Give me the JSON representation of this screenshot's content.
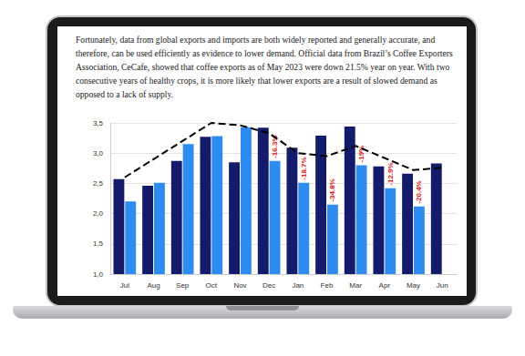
{
  "paragraph": "Fortunately, data from global exports and imports are both widely reported and generally accurate, and therefore, can be used efficiently as evidence to lower demand. Official data from Brazil’s Coffee Exporters Association, CeCafe, showed that coffee exports as of May 2023 were down 21.5% year on year. With two consecutive years of healthy crops, it is more likely that lower exports are a result of slowed demand as opposed to a lack of supply.",
  "chart_data": {
    "type": "bar",
    "categories": [
      "Jul",
      "Aug",
      "Sep",
      "Oct",
      "Nov",
      "Dec",
      "Jan",
      "Feb",
      "Mar",
      "Apr",
      "May",
      "Jun"
    ],
    "series": [
      {
        "color": "#141b6b",
        "values": [
          2.57,
          2.46,
          2.87,
          3.27,
          2.85,
          3.42,
          3.09,
          3.29,
          3.44,
          2.78,
          2.66,
          2.83
        ]
      },
      {
        "color": "#2e8bf0",
        "values": [
          2.2,
          2.51,
          3.15,
          3.28,
          3.43,
          2.87,
          2.51,
          2.15,
          2.8,
          2.42,
          2.12,
          null
        ],
        "annotations": [
          {
            "category": "Dec",
            "text": "-16.3%"
          },
          {
            "category": "Jan",
            "text": "-18.7%"
          },
          {
            "category": "Feb",
            "text": "-34.8%"
          },
          {
            "category": "Mar",
            "text": "-19%"
          },
          {
            "category": "Apr",
            "text": "-12.9%"
          },
          {
            "category": "May",
            "text": "-20.4%"
          }
        ]
      },
      {
        "type": "line",
        "color": "#000000",
        "line_style": "dashed",
        "values": [
          2.6,
          2.9,
          3.2,
          3.5,
          3.46,
          3.33,
          3.0,
          2.95,
          3.12,
          2.92,
          2.72,
          2.76
        ]
      }
    ],
    "ylim": [
      1,
      3.5
    ],
    "yticks": [
      {
        "value": 1,
        "label": "1,0"
      },
      {
        "value": 1.5,
        "label": "1,5"
      },
      {
        "value": 2,
        "label": "2,0"
      },
      {
        "value": 2.5,
        "label": "2,5"
      },
      {
        "value": 3,
        "label": "3,0"
      },
      {
        "value": 3.5,
        "label": "3,5"
      }
    ],
    "grid": true
  }
}
